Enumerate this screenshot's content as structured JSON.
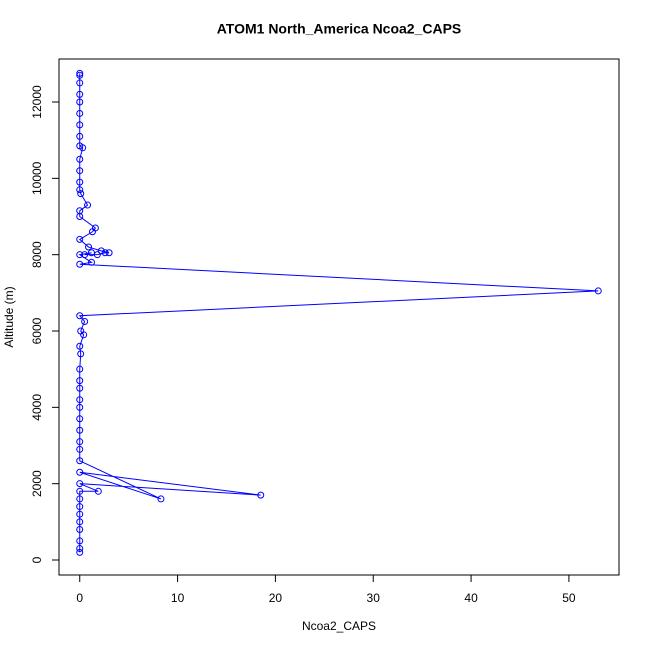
{
  "chart_data": {
    "type": "line",
    "title": "ATOM1 North_America Ncoa2_CAPS",
    "xlabel": "Ncoa2_CAPS",
    "ylabel": "Altitude (m)",
    "series": [
      {
        "color": "#0000ff",
        "markers": true,
        "x": [
          0,
          0,
          0,
          0,
          0,
          0,
          0,
          0,
          0,
          0.3,
          0,
          0,
          0,
          0,
          0.1,
          0.8,
          0,
          0,
          1.6,
          1.3,
          0,
          0.9,
          2.2,
          3.0,
          2.6,
          1.8,
          0.5,
          1.2,
          0,
          1.2,
          0,
          53,
          0,
          0.5,
          0.1,
          0.4,
          0,
          0.1,
          0,
          0,
          0,
          0,
          0,
          0,
          0,
          0,
          0,
          0,
          8.3,
          0,
          18.5,
          0,
          1.9,
          0,
          0,
          0,
          0,
          0,
          0,
          0,
          0,
          0
        ],
        "values": [
          12750,
          12700,
          12500,
          12200,
          12000,
          11700,
          11400,
          11100,
          10850,
          10800,
          10500,
          10200,
          9900,
          9700,
          9600,
          9300,
          9150,
          9000,
          8700,
          8600,
          8400,
          8200,
          8100,
          8050,
          8050,
          8000,
          8000,
          8050,
          8000,
          7800,
          7750,
          7050,
          6400,
          6250,
          6000,
          5900,
          5600,
          5400,
          5000,
          4700,
          4500,
          4200,
          4000,
          3700,
          3400,
          3100,
          2900,
          2600,
          1600,
          2300,
          1700,
          2000,
          1800,
          1800,
          1600,
          1400,
          1200,
          1000,
          800,
          500,
          300,
          200
        ]
      }
    ],
    "xlim": [
      -2.12,
      55.12
    ],
    "ylim": [
      -393,
      13127
    ],
    "xticks": [
      0,
      10,
      20,
      30,
      40,
      50
    ],
    "yticks": [
      0,
      2000,
      4000,
      6000,
      8000,
      10000,
      12000
    ]
  }
}
